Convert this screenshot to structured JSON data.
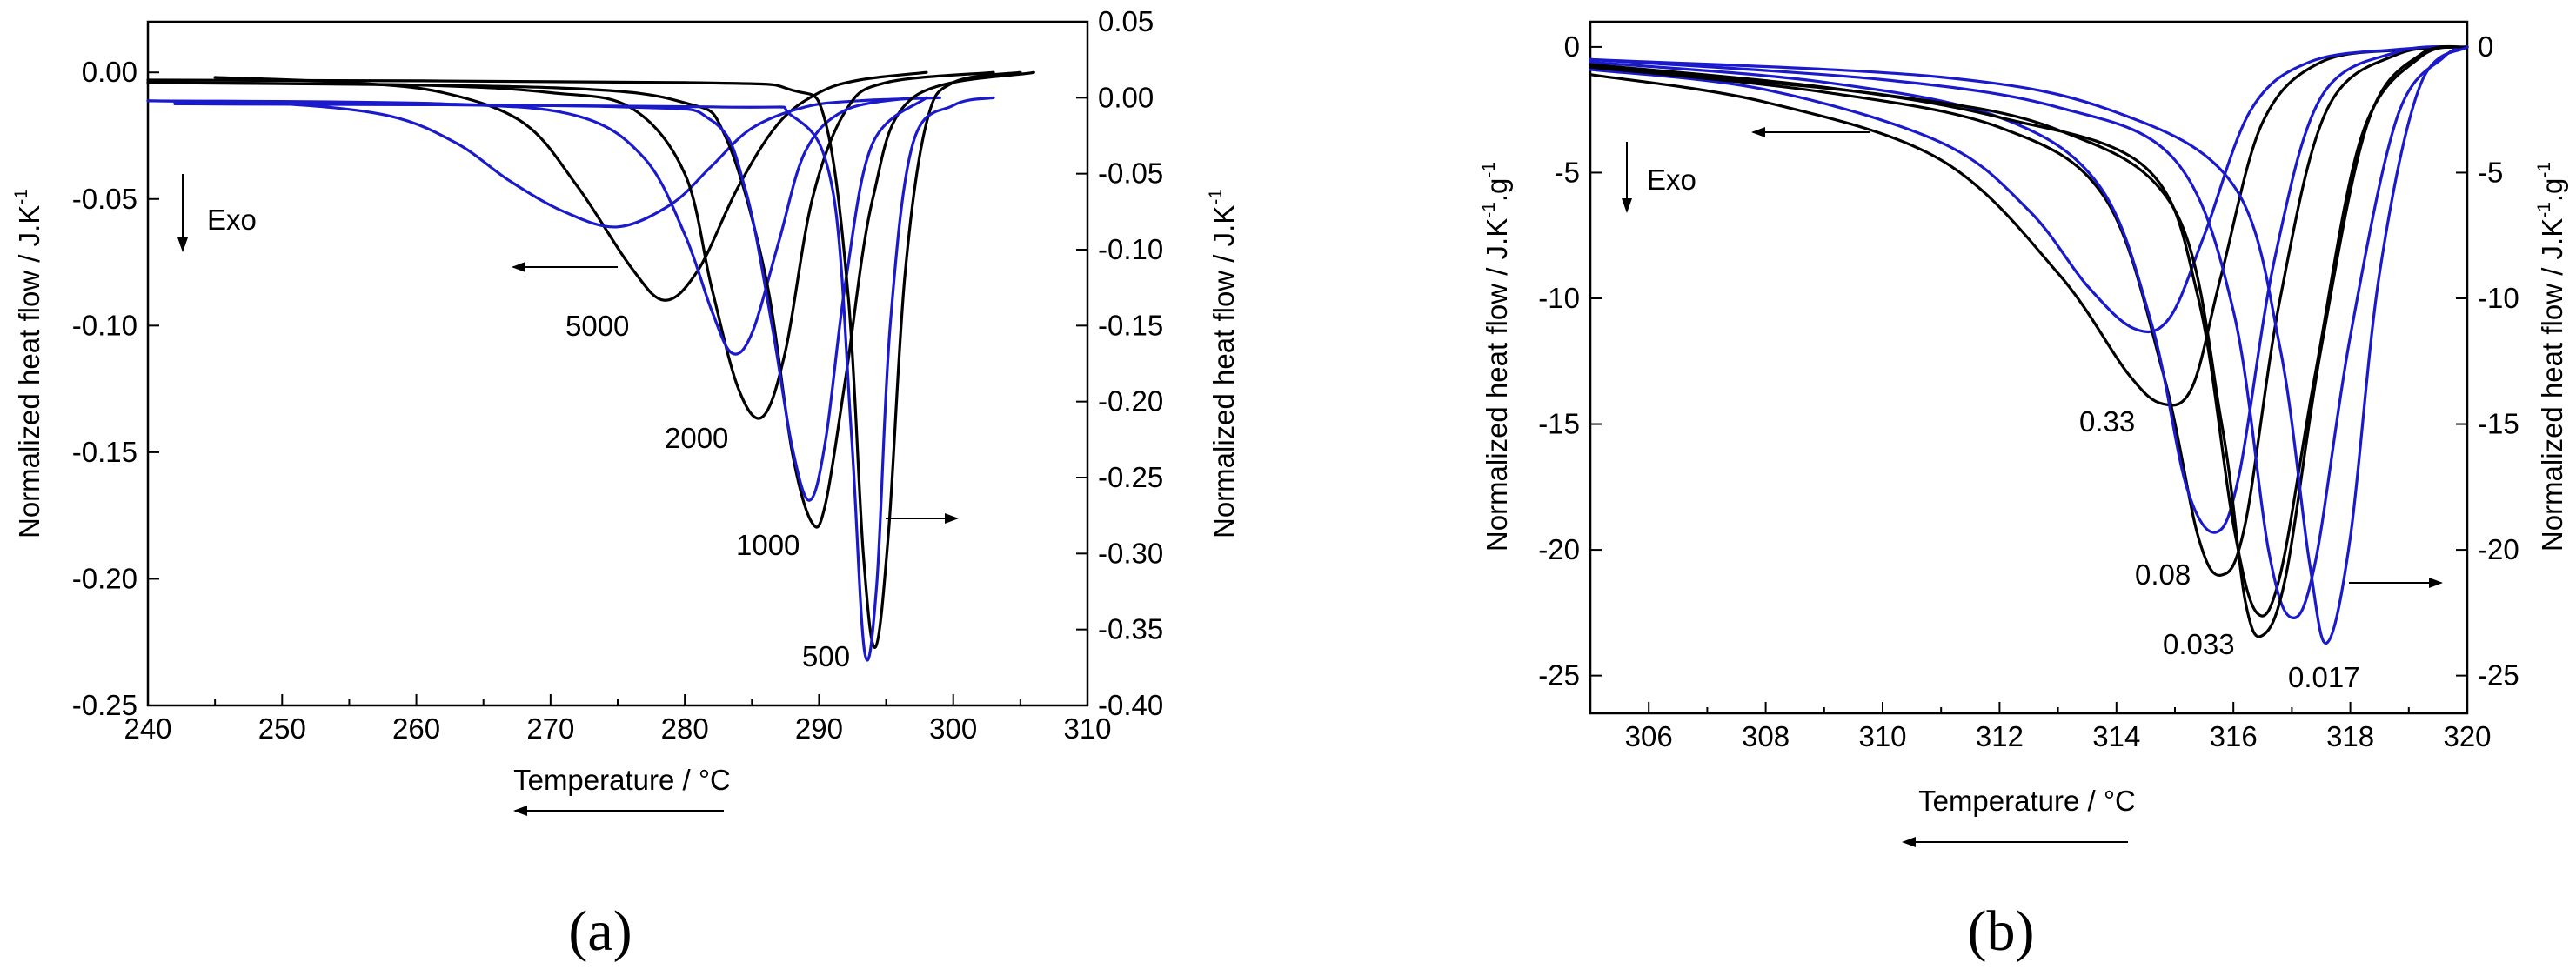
{
  "colors": {
    "black": "#000000",
    "blue": "#1a1acc"
  },
  "chart_data": [
    {
      "id": "a",
      "type": "line",
      "panel_label": "(a)",
      "xlabel": "Temperature / °C",
      "ylabel_left": "Normalized heat flow / J.K",
      "ylabel_right": "Normalized heat flow  / J.K",
      "ylabel_sup": "-1",
      "xlim": [
        240,
        310
      ],
      "ylim_left": [
        -0.25,
        0.02
      ],
      "ylim_right": [
        -0.4,
        0.05
      ],
      "x_ticks": [
        "240",
        "250",
        "260",
        "270",
        "280",
        "290",
        "300",
        "310"
      ],
      "y_left_ticks": [
        "0.00",
        "-0.05",
        "-0.10",
        "-0.15",
        "-0.20",
        "-0.25"
      ],
      "y_right_ticks": [
        "0.05",
        "0.00",
        "-0.05",
        "-0.10",
        "-0.15",
        "-0.20",
        "-0.25",
        "-0.30",
        "-0.35",
        "-0.40"
      ],
      "annotations": {
        "exo": "Exo",
        "rates": [
          "5000",
          "2000",
          "1000",
          "500"
        ]
      },
      "series": [
        {
          "name": "5000 (left axis)",
          "color": "black",
          "axis": "left",
          "x": [
            245,
            255,
            262,
            268,
            272,
            276,
            278.5,
            281,
            284,
            287,
            290,
            293,
            298
          ],
          "y": [
            -0.002,
            -0.004,
            -0.008,
            -0.02,
            -0.045,
            -0.077,
            -0.09,
            -0.078,
            -0.045,
            -0.02,
            -0.008,
            -0.003,
            0.0
          ]
        },
        {
          "name": "5000 (right axis)",
          "color": "blue",
          "axis": "right",
          "x": [
            240,
            250,
            258,
            263,
            267,
            271,
            275,
            279,
            282,
            285,
            289,
            293,
            299
          ],
          "y": [
            -0.002,
            -0.004,
            -0.012,
            -0.03,
            -0.055,
            -0.075,
            -0.085,
            -0.07,
            -0.045,
            -0.02,
            -0.006,
            -0.002,
            0.0
          ]
        },
        {
          "name": "2000 (left axis)",
          "color": "black",
          "axis": "left",
          "x": [
            240,
            260,
            270,
            276,
            280,
            282,
            284,
            285.8,
            287.5,
            289.5,
            292,
            295,
            303
          ],
          "y": [
            -0.004,
            -0.005,
            -0.008,
            -0.014,
            -0.04,
            -0.085,
            -0.125,
            -0.136,
            -0.11,
            -0.05,
            -0.015,
            -0.004,
            0.0
          ]
        },
        {
          "name": "2000 (right axis)",
          "color": "blue",
          "axis": "right",
          "x": [
            240,
            262,
            272,
            277,
            280,
            282,
            283.5,
            285,
            287,
            289,
            292,
            297
          ],
          "y": [
            -0.002,
            -0.004,
            -0.012,
            -0.04,
            -0.09,
            -0.14,
            -0.168,
            -0.155,
            -0.095,
            -0.035,
            -0.008,
            0.0
          ]
        },
        {
          "name": "1000 (left axis)",
          "color": "black",
          "axis": "left",
          "x": [
            240,
            270,
            280,
            283,
            286,
            288,
            289.5,
            290.5,
            292,
            294,
            297,
            306
          ],
          "y": [
            -0.004,
            -0.006,
            -0.012,
            -0.025,
            -0.08,
            -0.15,
            -0.178,
            -0.17,
            -0.12,
            -0.05,
            -0.01,
            0.0
          ]
        },
        {
          "name": "1000 (right axis)",
          "color": "blue",
          "axis": "right",
          "x": [
            242,
            275,
            282,
            284.5,
            286.5,
            288,
            289.3,
            290.5,
            292,
            294,
            298
          ],
          "y": [
            -0.004,
            -0.006,
            -0.015,
            -0.06,
            -0.15,
            -0.23,
            -0.265,
            -0.225,
            -0.12,
            -0.03,
            0.0
          ]
        },
        {
          "name": "500 (left axis)",
          "color": "black",
          "axis": "left",
          "x": [
            240,
            280,
            288,
            290.5,
            292.2,
            293.3,
            294.2,
            295.2,
            296.4,
            298,
            300,
            305
          ],
          "y": [
            -0.003,
            -0.004,
            -0.007,
            -0.02,
            -0.09,
            -0.19,
            -0.227,
            -0.18,
            -0.08,
            -0.02,
            -0.004,
            0.0
          ]
        },
        {
          "name": "500 (right axis)",
          "color": "blue",
          "axis": "right",
          "x": [
            242,
            282,
            288,
            291,
            292.4,
            293.4,
            294.3,
            295.3,
            297,
            300,
            303
          ],
          "y": [
            -0.004,
            -0.006,
            -0.012,
            -0.06,
            -0.22,
            -0.365,
            -0.32,
            -0.15,
            -0.03,
            -0.005,
            0.0
          ]
        }
      ]
    },
    {
      "id": "b",
      "type": "line",
      "panel_label": "(b)",
      "xlabel": "Temperature / °C",
      "ylabel_left": "Normalized heat flow / J.K",
      "ylabel_right": "Normalized heat flow / J.K",
      "ylabel_sup1": "-1",
      "ylabel_mid": ".g",
      "ylabel_sup2": "-1",
      "xlim": [
        305,
        320
      ],
      "ylim_left": [
        -26.5,
        1
      ],
      "ylim_right": [
        -26.5,
        1
      ],
      "x_ticks": [
        "306",
        "308",
        "310",
        "312",
        "314",
        "316",
        "318",
        "320"
      ],
      "y_left_ticks": [
        "0",
        "-5",
        "-10",
        "-15",
        "-20",
        "-25"
      ],
      "y_right_ticks": [
        "0",
        "-5",
        "-10",
        "-15",
        "-20",
        "-25"
      ],
      "annotations": {
        "exo": "Exo",
        "rates": [
          "0.33",
          "0.08",
          "0.033",
          "0.017"
        ]
      },
      "series": [
        {
          "name": "0.33 (left axis)",
          "color": "black",
          "axis": "left",
          "x": [
            305,
            308,
            311,
            313,
            314.2,
            314.8,
            315.3,
            315.8,
            316.5,
            317.5,
            319,
            320
          ],
          "y": [
            -1.1,
            -2.2,
            -4.5,
            -9,
            -13,
            -14.2,
            -13.5,
            -9,
            -3,
            -0.6,
            -0.1,
            0
          ]
        },
        {
          "name": "0.33 (right axis)",
          "color": "blue",
          "axis": "right",
          "x": [
            305,
            308,
            311,
            312.5,
            313.5,
            314.3,
            314.9,
            315.5,
            316.3,
            317.3,
            318.8,
            320
          ],
          "y": [
            -0.9,
            -1.7,
            -3.8,
            -6.5,
            -9.5,
            -11.2,
            -10.8,
            -7.5,
            -2.5,
            -0.6,
            -0.1,
            0
          ]
        },
        {
          "name": "0.08 (left axis)",
          "color": "black",
          "axis": "left",
          "x": [
            305,
            309,
            312,
            313.8,
            314.8,
            315.4,
            315.8,
            316.2,
            316.8,
            317.6,
            318.8,
            320
          ],
          "y": [
            -0.8,
            -1.8,
            -3.2,
            -6,
            -13,
            -19.5,
            -21,
            -19,
            -10,
            -2.5,
            -0.3,
            0
          ]
        },
        {
          "name": "0.08 (right axis)",
          "color": "blue",
          "axis": "right",
          "x": [
            305,
            309,
            312,
            313.7,
            314.6,
            315.2,
            315.7,
            316.1,
            316.7,
            317.5,
            318.8,
            320
          ],
          "y": [
            -0.6,
            -1.4,
            -2.8,
            -5.5,
            -11,
            -17.5,
            -19.3,
            -17,
            -8.5,
            -2,
            -0.2,
            0
          ]
        },
        {
          "name": "0.033 (left axis)",
          "color": "black",
          "axis": "left",
          "x": [
            305,
            309,
            312,
            314.5,
            315.4,
            316,
            316.4,
            316.8,
            317.4,
            318.2,
            319.2,
            320
          ],
          "y": [
            -0.7,
            -1.6,
            -2.8,
            -4.8,
            -10,
            -19,
            -22.5,
            -21,
            -13,
            -3.5,
            -0.4,
            0
          ]
        },
        {
          "name": "0.033 (right axis)",
          "color": "blue",
          "axis": "right",
          "x": [
            305,
            310,
            313,
            315,
            316,
            316.6,
            317,
            317.4,
            318,
            318.8,
            319.6,
            320
          ],
          "y": [
            -0.5,
            -1.3,
            -2.4,
            -4.5,
            -10.5,
            -20,
            -22.7,
            -20.5,
            -11.5,
            -2.8,
            -0.4,
            0
          ]
        },
        {
          "name": "0.017 (left axis)",
          "color": "black",
          "axis": "left",
          "x": [
            305,
            310,
            313,
            315,
            315.8,
            316.2,
            316.5,
            316.9,
            317.5,
            318.3,
            319.2,
            320
          ],
          "y": [
            -0.8,
            -1.9,
            -3.3,
            -6.5,
            -15,
            -22,
            -23.4,
            -21,
            -12,
            -3,
            -0.3,
            0
          ]
        },
        {
          "name": "0.017 (right axis)",
          "color": "blue",
          "axis": "right",
          "x": [
            305,
            311,
            314,
            316,
            316.8,
            317.3,
            317.6,
            318,
            318.5,
            319.2,
            320
          ],
          "y": [
            -0.5,
            -1.2,
            -2.6,
            -5.5,
            -12,
            -20.5,
            -23.7,
            -19.5,
            -9,
            -1.5,
            0
          ]
        }
      ]
    }
  ]
}
